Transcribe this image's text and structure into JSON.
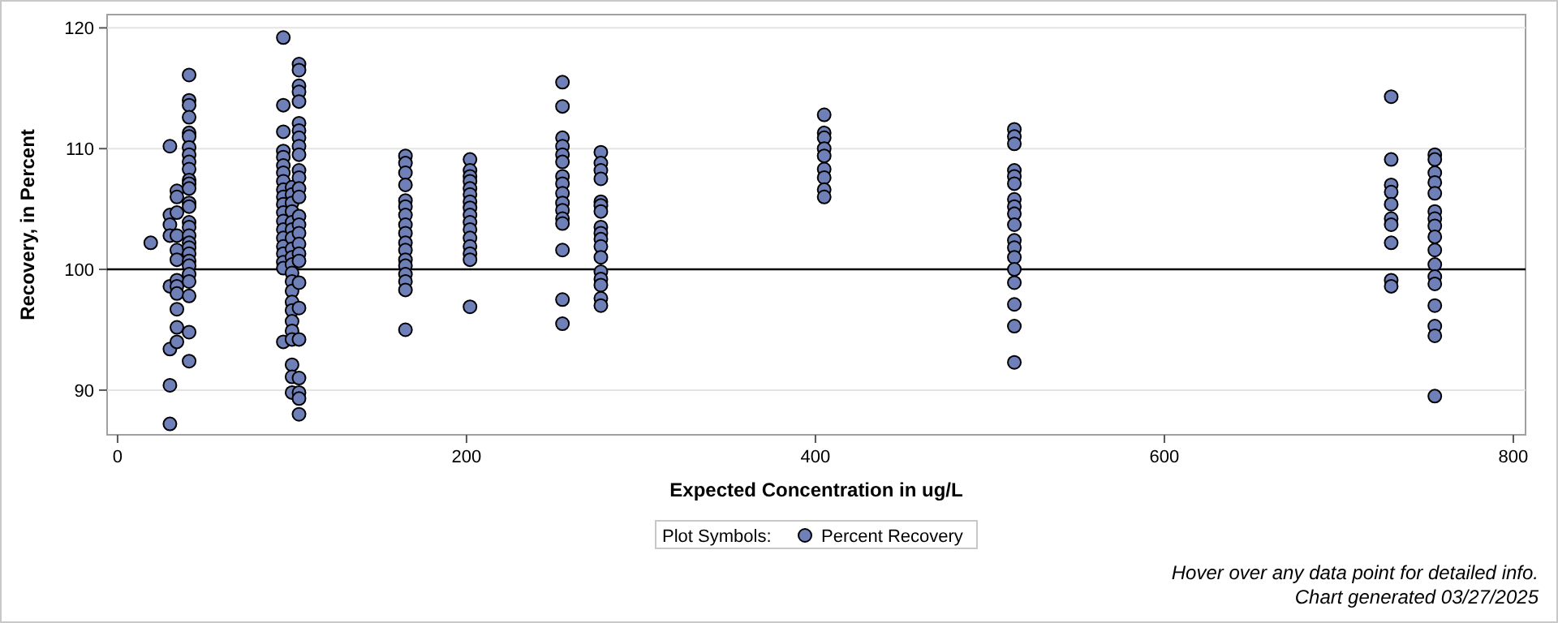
{
  "chart_data": {
    "type": "scatter",
    "xlabel": "Expected Concentration in ug/L",
    "ylabel": "Recovery, in Percent",
    "legend_title": "Plot Symbols:",
    "annotations": [
      "Hover over any data point for detailed info.",
      "Chart generated 03/27/2025"
    ],
    "xlim": [
      -6,
      807
    ],
    "ylim": [
      86.3,
      121.1
    ],
    "xticks": [
      0,
      200,
      400,
      600,
      800
    ],
    "yticks": [
      90,
      100,
      110,
      120
    ],
    "grid": "y",
    "legend": "bottom",
    "marker": "circle",
    "ref_lines": [
      {
        "axis": "y",
        "value": 100,
        "color": "#000000"
      }
    ],
    "series": [
      {
        "name": "Percent Recovery",
        "color": "#6f7fb8",
        "x": [
          19,
          30,
          30,
          30,
          30,
          30,
          30,
          30,
          30,
          34,
          34,
          34,
          34,
          34,
          34,
          34,
          34,
          34,
          34,
          34,
          34,
          41,
          41,
          41,
          41,
          41,
          41,
          41,
          41,
          41,
          41,
          41,
          41,
          41,
          41,
          41,
          41,
          41,
          41,
          41,
          41,
          41,
          41,
          41,
          41,
          41,
          41,
          41,
          41,
          95,
          95,
          95,
          95,
          95,
          95,
          95,
          95,
          95,
          95,
          95,
          95,
          95,
          95,
          95,
          95,
          95,
          95,
          95,
          95,
          100,
          100,
          100,
          100,
          100,
          100,
          100,
          100,
          100,
          100,
          100,
          100,
          100,
          100,
          100,
          100,
          100,
          100,
          100,
          100,
          100,
          104,
          104,
          104,
          104,
          104,
          104,
          104,
          104,
          104,
          104,
          104,
          104,
          104,
          104,
          104,
          104,
          104,
          104,
          104,
          104,
          104,
          104,
          104,
          104,
          104,
          104,
          104,
          165,
          165,
          165,
          165,
          165,
          165,
          165,
          165,
          165,
          165,
          165,
          165,
          165,
          165,
          165,
          165,
          165,
          202,
          202,
          202,
          202,
          202,
          202,
          202,
          202,
          202,
          202,
          202,
          202,
          202,
          202,
          202,
          202,
          255,
          255,
          255,
          255,
          255,
          255,
          255,
          255,
          255,
          255,
          255,
          255,
          255,
          255,
          255,
          255,
          277,
          277,
          277,
          277,
          277,
          277,
          277,
          277,
          277,
          277,
          277,
          277,
          277,
          277,
          277,
          277,
          277,
          405,
          405,
          405,
          405,
          405,
          405,
          405,
          405,
          405,
          514,
          514,
          514,
          514,
          514,
          514,
          514,
          514,
          514,
          514,
          514,
          514,
          514,
          514,
          514,
          514,
          514,
          514,
          730,
          730,
          730,
          730,
          730,
          730,
          730,
          730,
          730,
          730,
          755,
          755,
          755,
          755,
          755,
          755,
          755,
          755,
          755,
          755,
          755,
          755,
          755,
          755,
          755,
          755,
          755
        ],
        "values": [
          102.2,
          110.2,
          104.5,
          103.7,
          102.8,
          98.6,
          93.4,
          90.4,
          87.2,
          106.5,
          106.0,
          104.7,
          102.8,
          101.6,
          100.8,
          99.1,
          98.6,
          98.0,
          96.7,
          95.2,
          94.0,
          116.1,
          114.0,
          113.6,
          112.6,
          111.3,
          111.0,
          110.1,
          109.5,
          108.9,
          108.3,
          107.4,
          107.1,
          106.7,
          105.5,
          105.2,
          103.9,
          103.5,
          102.8,
          102.2,
          101.8,
          101.3,
          100.7,
          100.3,
          99.6,
          99.0,
          97.8,
          94.8,
          92.4,
          119.2,
          113.6,
          111.4,
          109.8,
          109.3,
          108.6,
          108.0,
          107.3,
          106.6,
          106.0,
          105.4,
          104.7,
          104.0,
          103.3,
          102.6,
          101.9,
          101.3,
          100.6,
          100.1,
          94.0,
          106.8,
          106.2,
          105.5,
          104.8,
          103.9,
          103.3,
          102.6,
          101.7,
          101.0,
          100.4,
          99.7,
          99.0,
          98.2,
          97.3,
          96.6,
          95.7,
          94.9,
          94.2,
          92.1,
          91.1,
          89.8,
          117.0,
          116.5,
          115.2,
          114.7,
          113.9,
          112.1,
          111.5,
          110.9,
          110.2,
          109.5,
          108.2,
          107.6,
          106.7,
          106.0,
          104.4,
          103.7,
          103.0,
          102.1,
          101.3,
          100.7,
          98.9,
          96.8,
          94.2,
          91.0,
          89.8,
          89.3,
          88.0,
          109.4,
          108.8,
          108.0,
          107.0,
          105.7,
          105.2,
          104.5,
          103.7,
          103.0,
          102.2,
          101.6,
          100.8,
          100.3,
          99.6,
          99.0,
          98.3,
          95.0,
          109.1,
          108.2,
          107.7,
          107.3,
          106.7,
          106.2,
          105.6,
          105.1,
          104.5,
          103.9,
          103.3,
          102.6,
          101.9,
          101.3,
          100.8,
          96.9,
          115.5,
          113.5,
          110.9,
          110.2,
          109.5,
          108.9,
          107.7,
          107.1,
          106.3,
          105.5,
          104.9,
          104.2,
          103.8,
          101.6,
          97.5,
          95.5,
          109.7,
          108.8,
          108.2,
          107.5,
          105.6,
          105.3,
          104.8,
          103.5,
          103.0,
          102.5,
          101.9,
          101.0,
          99.8,
          99.2,
          98.7,
          97.6,
          97.0,
          112.8,
          111.3,
          110.9,
          110.0,
          109.4,
          108.3,
          107.6,
          106.6,
          106.0,
          111.6,
          111.0,
          110.4,
          108.2,
          107.7,
          107.1,
          105.8,
          105.2,
          104.6,
          103.7,
          102.4,
          101.8,
          101.0,
          100.0,
          98.9,
          97.1,
          95.3,
          92.3,
          114.3,
          109.1,
          107.0,
          106.4,
          105.4,
          104.2,
          103.7,
          102.2,
          99.1,
          98.6,
          109.5,
          109.1,
          108.0,
          107.2,
          106.3,
          104.8,
          104.2,
          103.6,
          102.7,
          101.6,
          100.4,
          99.4,
          98.8,
          97.0,
          95.3,
          94.5,
          89.5
        ]
      }
    ]
  }
}
